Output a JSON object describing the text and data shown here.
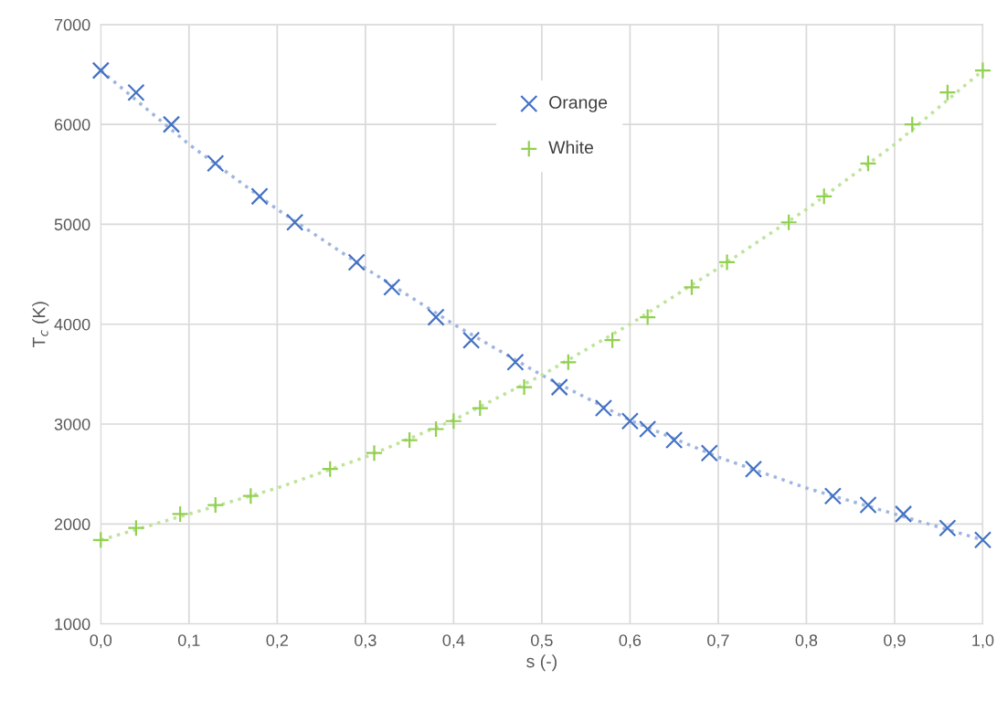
{
  "chart_data": {
    "type": "scatter",
    "xlabel": "s (-)",
    "ylabel": "T$_{c}$ (K)",
    "xlim": [
      0,
      1
    ],
    "ylim": [
      1000,
      7000
    ],
    "xticks": [
      {
        "value": 0,
        "label": "0,0"
      },
      {
        "value": 0.1,
        "label": "0,1"
      },
      {
        "value": 0.2,
        "label": "0,2"
      },
      {
        "value": 0.3,
        "label": "0,3"
      },
      {
        "value": 0.4,
        "label": "0,4"
      },
      {
        "value": 0.5,
        "label": "0,5"
      },
      {
        "value": 0.6,
        "label": "0,6"
      },
      {
        "value": 0.7,
        "label": "0,7"
      },
      {
        "value": 0.8,
        "label": "0,8"
      },
      {
        "value": 0.9,
        "label": "0,9"
      },
      {
        "value": 1,
        "label": "1,0"
      }
    ],
    "yticks": [
      1000,
      2000,
      3000,
      4000,
      5000,
      6000,
      7000
    ],
    "grid": true,
    "legend": "top",
    "series": [
      {
        "name": "Orange",
        "marker": "cross",
        "color": "#4472c4",
        "x": [
          0,
          0.04,
          0.08,
          0.13,
          0.18,
          0.22,
          0.29,
          0.33,
          0.38,
          0.42,
          0.47,
          0.52,
          0.57,
          0.6,
          0.62,
          0.65,
          0.69,
          0.74,
          0.83,
          0.87,
          0.91,
          0.96,
          1.0
        ],
        "values": [
          6540,
          6320,
          6000,
          5610,
          5280,
          5020,
          4620,
          4370,
          4070,
          3840,
          3620,
          3370,
          3160,
          3030,
          2950,
          2840,
          2710,
          2550,
          2280,
          2190,
          2100,
          1960,
          1840
        ]
      },
      {
        "name": "White",
        "marker": "plus",
        "color": "#92d050",
        "x": [
          0,
          0.04,
          0.09,
          0.13,
          0.17,
          0.26,
          0.31,
          0.35,
          0.38,
          0.4,
          0.43,
          0.48,
          0.53,
          0.58,
          0.62,
          0.67,
          0.71,
          0.78,
          0.82,
          0.87,
          0.92,
          0.96,
          1.0
        ],
        "values": [
          1840,
          1960,
          2100,
          2190,
          2280,
          2550,
          2710,
          2840,
          2950,
          3030,
          3160,
          3370,
          3620,
          3840,
          4070,
          4370,
          4620,
          5020,
          5280,
          5610,
          6000,
          6320,
          6540
        ]
      },
      {
        "type": "line",
        "line_style": "dotted",
        "color": "#9fb5e0",
        "x": [
          0,
          0.1,
          0.2,
          0.3,
          0.4,
          0.5,
          0.6,
          0.7,
          0.8,
          0.9,
          1.0
        ],
        "values": [
          6540,
          5800,
          5150,
          4560,
          4000,
          3490,
          3040,
          2670,
          2360,
          2100,
          1840
        ]
      },
      {
        "type": "line",
        "line_style": "dotted",
        "color": "#bfe39a",
        "x": [
          0,
          0.1,
          0.2,
          0.3,
          0.4,
          0.5,
          0.6,
          0.7,
          0.8,
          0.9,
          1.0
        ],
        "values": [
          1840,
          2100,
          2360,
          2670,
          3040,
          3490,
          4000,
          4560,
          5150,
          5800,
          6540
        ]
      }
    ]
  }
}
